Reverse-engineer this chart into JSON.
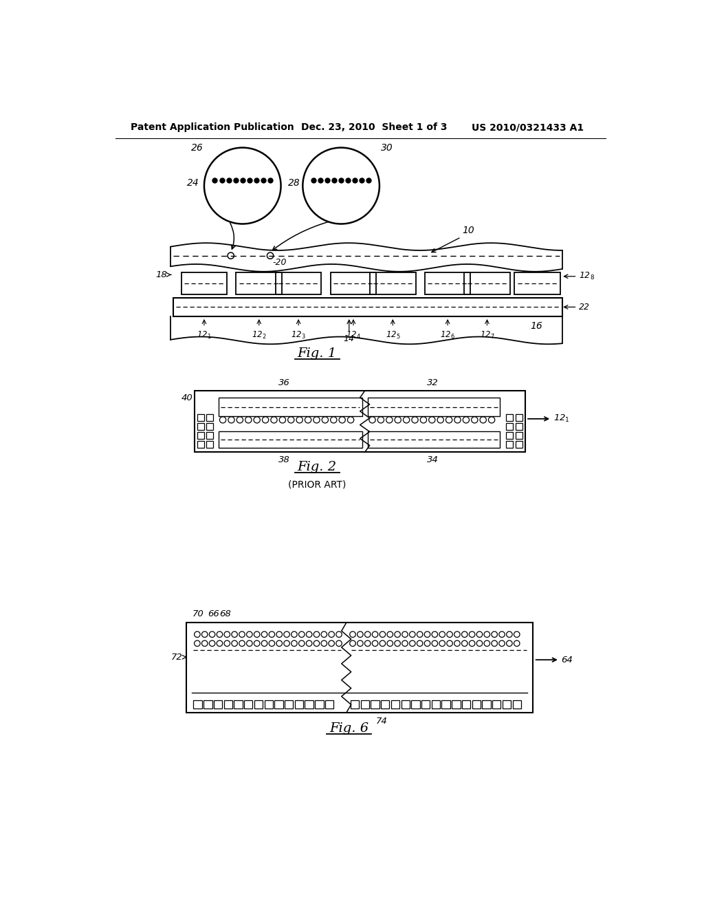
{
  "header_left": "Patent Application Publication",
  "header_center": "Dec. 23, 2010  Sheet 1 of 3",
  "header_right": "US 2010/0321433 A1",
  "bg_color": "#ffffff",
  "line_color": "#000000"
}
